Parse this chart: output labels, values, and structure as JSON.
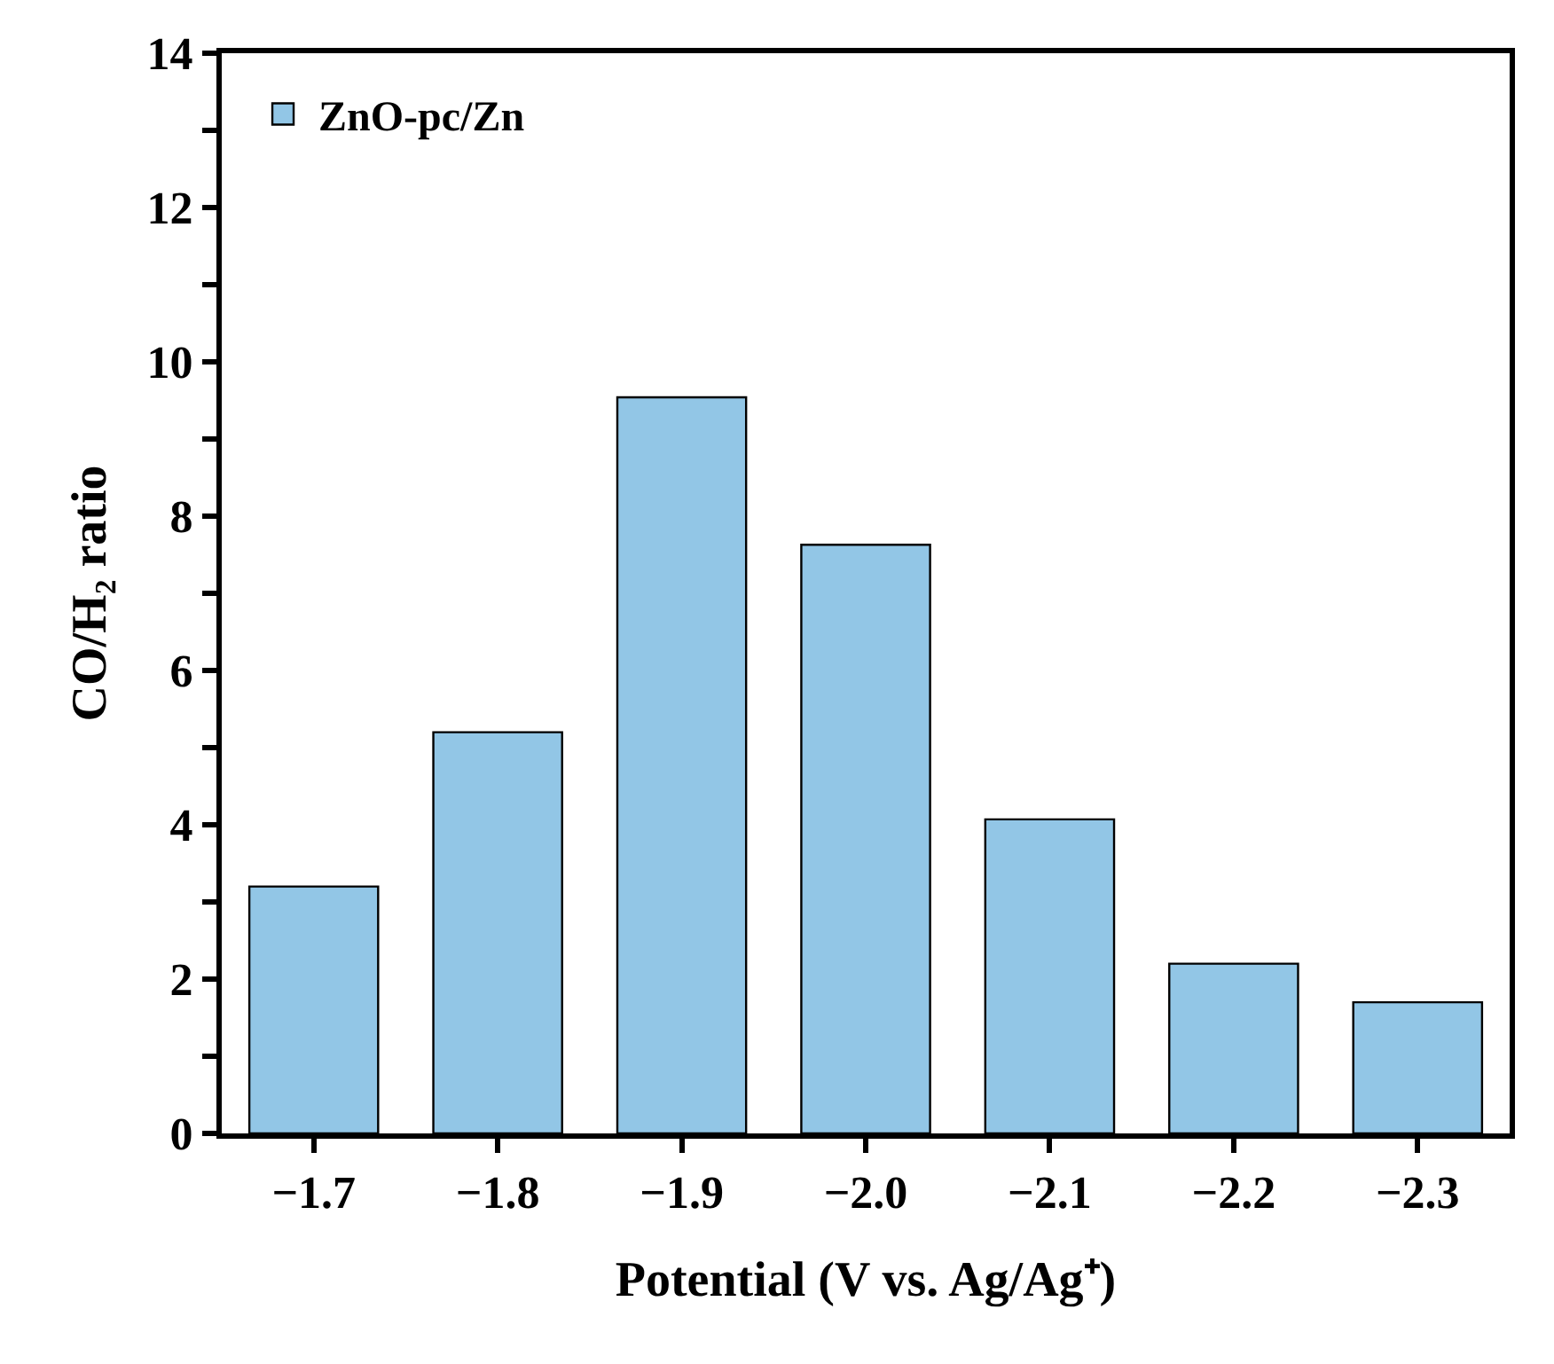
{
  "chart_data": {
    "type": "bar",
    "xlabel": "Potential (V vs. Ag/Ag⁺)",
    "ylabel": "CO/H₂ ratio",
    "categories": [
      "−1.7",
      "−1.8",
      "−1.9",
      "−2.0",
      "−2.1",
      "−2.2",
      "−2.3"
    ],
    "series": [
      {
        "name": "ZnO-pc/Zn",
        "color": "#92c6e6",
        "values": [
          3.2,
          5.2,
          9.54,
          7.63,
          4.07,
          2.2,
          1.7
        ]
      }
    ],
    "ylim": [
      0,
      14
    ],
    "yticks": [
      0,
      {
        "value": 1,
        "label": null
      },
      2,
      {
        "value": 3,
        "label": null
      },
      4,
      {
        "value": 5,
        "label": null
      },
      6,
      {
        "value": 7,
        "label": null
      },
      8,
      {
        "value": 9,
        "label": null
      },
      10,
      {
        "value": 11,
        "label": null
      },
      12,
      {
        "value": 13,
        "label": null
      },
      14
    ],
    "legend": "top left"
  }
}
